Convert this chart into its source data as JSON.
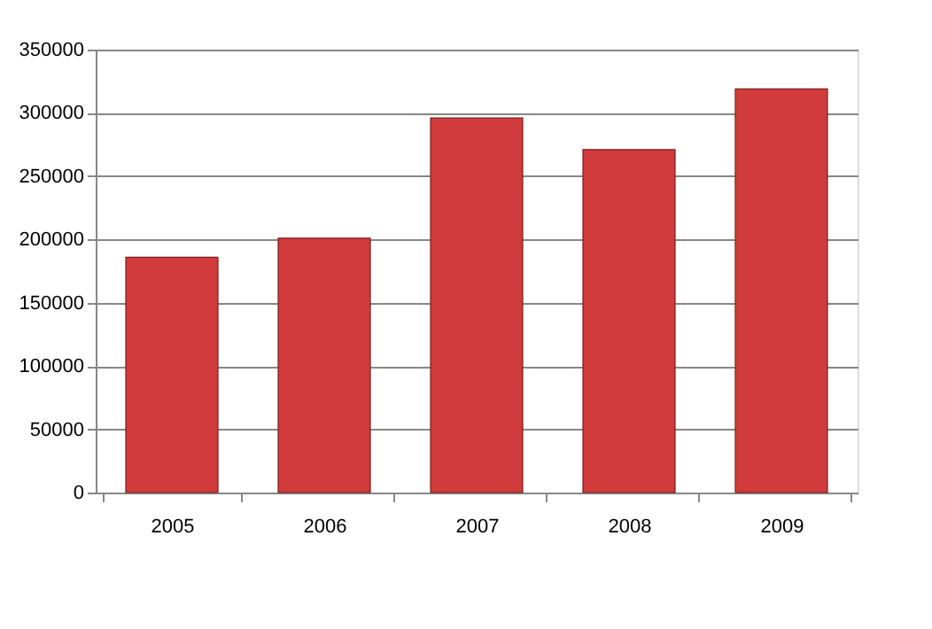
{
  "chart_data": {
    "type": "bar",
    "categories": [
      "2005",
      "2006",
      "2007",
      "2008",
      "2009"
    ],
    "values": [
      186000,
      201000,
      296000,
      271000,
      319000
    ],
    "color": "#d13b3b",
    "ylim": [
      0,
      350000
    ],
    "yticks": [
      0,
      50000,
      100000,
      150000,
      200000,
      250000,
      300000,
      350000
    ],
    "grid": "y"
  }
}
